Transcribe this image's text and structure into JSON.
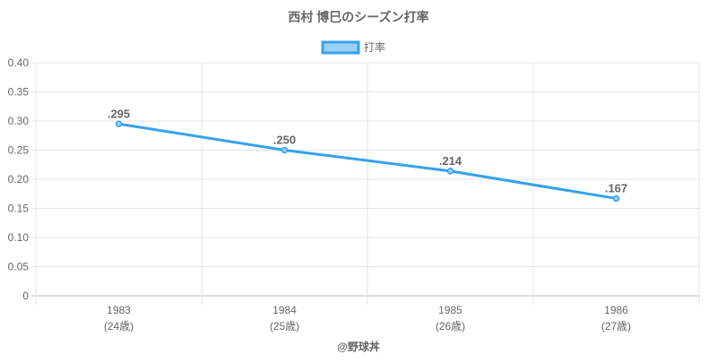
{
  "chart_data": {
    "type": "line",
    "title": "西村 博巳のシーズン打率",
    "legend": {
      "label": "打率",
      "placement": "top"
    },
    "categories": [
      "1983",
      "1984",
      "1985",
      "1986"
    ],
    "sublabels": [
      "(24歳)",
      "(25歳)",
      "(26歳)",
      "(27歳)"
    ],
    "series": [
      {
        "name": "打率",
        "values": [
          0.295,
          0.25,
          0.214,
          0.167
        ]
      }
    ],
    "data_labels": [
      ".295",
      ".250",
      ".214",
      ".167"
    ],
    "yticks": [
      "0",
      "0.05",
      "0.10",
      "0.15",
      "0.20",
      "0.25",
      "0.30",
      "0.35",
      "0.40"
    ],
    "ylim": [
      0,
      0.4
    ],
    "grid": true,
    "xlabel": "",
    "ylabel": ""
  },
  "footer": "@野球丼",
  "colors": {
    "line": "#36a2eb",
    "fill": "#9ad0f5",
    "text": "#666666",
    "grid": "#e6e6e6"
  }
}
